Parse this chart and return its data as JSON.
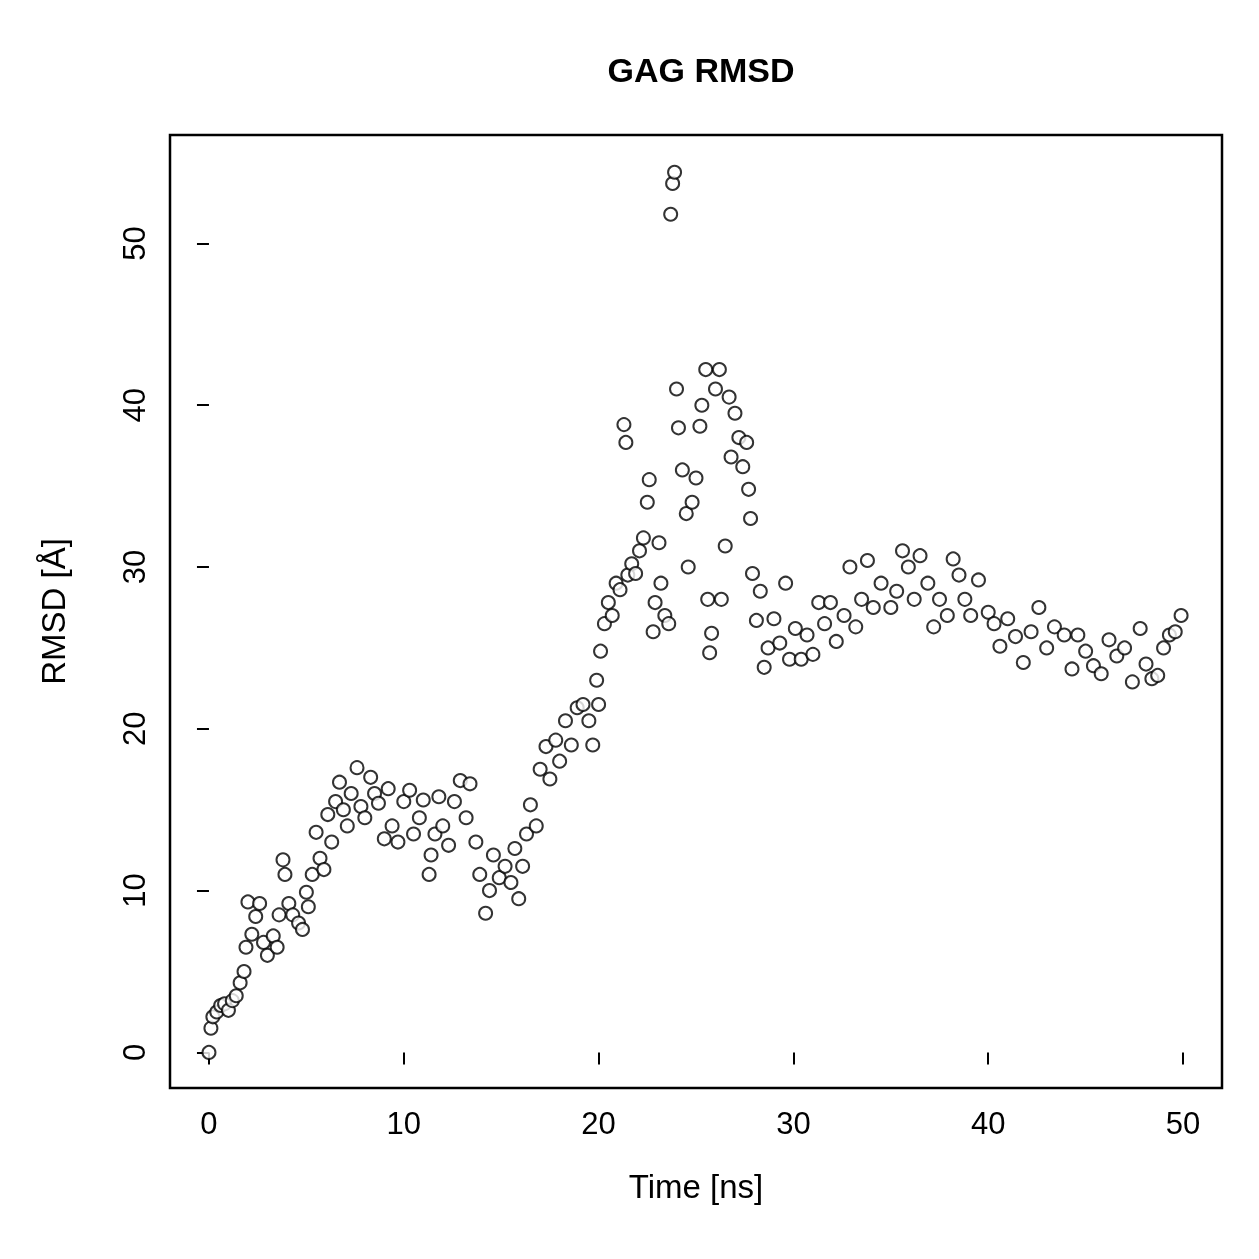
{
  "chart_data": {
    "type": "scatter",
    "title": "GAG RMSD",
    "xlabel": "Time [ns]",
    "ylabel": "RMSD [Å]",
    "xlim": [
      -2,
      52
    ],
    "ylim": [
      -2.2,
      56.7
    ],
    "xticks": [
      0,
      10,
      20,
      30,
      40,
      50
    ],
    "yticks": [
      0,
      10,
      20,
      30,
      40,
      50
    ],
    "marker": "circle",
    "series": [
      {
        "color": "#000000",
        "x": [
          0,
          0.1,
          0.2,
          0.4,
          0.6,
          0.8,
          1.0,
          1.2,
          1.4,
          1.6,
          1.8,
          1.9,
          2.0,
          2.2,
          2.4,
          2.6,
          2.8,
          3.0,
          3.3,
          3.5,
          3.6,
          3.8,
          3.9,
          4.1,
          4.3,
          4.6,
          4.8,
          5.0,
          5.1,
          5.3,
          5.5,
          5.7,
          5.9,
          6.1,
          6.3,
          6.5,
          6.7,
          6.9,
          7.1,
          7.3,
          7.6,
          7.8,
          8.0,
          8.3,
          8.5,
          8.7,
          9.0,
          9.2,
          9.4,
          9.7,
          10.0,
          10.3,
          10.5,
          10.8,
          11.0,
          11.3,
          11.4,
          11.6,
          11.8,
          12.0,
          12.3,
          12.6,
          12.9,
          13.2,
          13.4,
          13.7,
          13.9,
          14.2,
          14.4,
          14.6,
          14.9,
          15.2,
          15.5,
          15.7,
          15.9,
          16.1,
          16.3,
          16.5,
          16.8,
          17.0,
          17.3,
          17.5,
          17.8,
          18.0,
          18.3,
          18.6,
          18.9,
          19.2,
          19.5,
          19.7,
          19.9,
          20.0,
          20.1,
          20.3,
          20.5,
          20.7,
          20.9,
          21.1,
          21.3,
          21.4,
          21.5,
          21.7,
          21.9,
          22.1,
          22.3,
          22.5,
          22.6,
          22.8,
          22.9,
          23.1,
          23.2,
          23.4,
          23.6,
          23.7,
          23.8,
          23.9,
          24.0,
          24.1,
          24.3,
          24.5,
          24.6,
          24.8,
          25.0,
          25.2,
          25.3,
          25.5,
          25.6,
          25.7,
          25.8,
          26.0,
          26.2,
          26.3,
          26.5,
          26.7,
          26.8,
          27.0,
          27.2,
          27.4,
          27.6,
          27.7,
          27.8,
          27.9,
          28.1,
          28.3,
          28.5,
          28.7,
          29.0,
          29.3,
          29.6,
          29.8,
          30.1,
          30.4,
          30.7,
          31.0,
          31.3,
          31.6,
          31.9,
          32.2,
          32.6,
          32.9,
          33.2,
          33.5,
          33.8,
          34.1,
          34.5,
          35.0,
          35.3,
          35.6,
          35.9,
          36.2,
          36.5,
          36.9,
          37.2,
          37.5,
          37.9,
          38.2,
          38.5,
          38.8,
          39.1,
          39.5,
          40.0,
          40.3,
          40.6,
          41.0,
          41.4,
          41.8,
          42.2,
          42.6,
          43.0,
          43.4,
          43.9,
          44.3,
          44.6,
          45.0,
          45.4,
          45.8,
          46.2,
          46.6,
          47.0,
          47.4,
          47.8,
          48.1,
          48.4,
          48.7,
          49.0,
          49.3,
          49.6,
          49.9
        ],
        "values": [
          0,
          1.5,
          2.2,
          2.5,
          2.9,
          3.0,
          2.6,
          3.2,
          3.5,
          4.3,
          5.0,
          6.5,
          9.3,
          7.3,
          8.4,
          9.2,
          6.8,
          6.0,
          7.2,
          6.5,
          8.5,
          11.9,
          11.0,
          9.2,
          8.5,
          8.0,
          7.6,
          9.9,
          9.0,
          11.0,
          13.6,
          12.0,
          11.3,
          14.7,
          13.0,
          15.5,
          16.7,
          15.0,
          14.0,
          16.0,
          17.6,
          15.2,
          14.5,
          17.0,
          16.0,
          15.4,
          13.2,
          16.3,
          14.0,
          13.0,
          15.5,
          16.2,
          13.5,
          14.5,
          15.6,
          11.0,
          12.2,
          13.5,
          15.8,
          14.0,
          12.8,
          15.5,
          16.8,
          14.5,
          16.6,
          13.0,
          11.0,
          8.6,
          10.0,
          12.2,
          10.8,
          11.5,
          10.5,
          12.6,
          9.5,
          11.5,
          13.5,
          15.3,
          14.0,
          17.5,
          18.9,
          16.9,
          19.3,
          18.0,
          20.5,
          19.0,
          21.3,
          21.5,
          20.5,
          19.0,
          23.0,
          21.5,
          24.8,
          26.5,
          27.8,
          27.0,
          29.0,
          28.6,
          38.8,
          37.7,
          29.5,
          30.2,
          29.6,
          31.0,
          31.8,
          34.0,
          35.4,
          26.0,
          27.8,
          31.5,
          29.0,
          27.0,
          26.5,
          51.8,
          53.7,
          54.4,
          41.0,
          38.6,
          36.0,
          33.3,
          30.0,
          34.0,
          35.5,
          38.7,
          40.0,
          42.2,
          28.0,
          24.7,
          25.9,
          41.0,
          42.2,
          28.0,
          31.3,
          40.5,
          36.8,
          39.5,
          38.0,
          36.2,
          37.7,
          34.8,
          33.0,
          29.6,
          26.7,
          28.5,
          23.8,
          25.0,
          26.8,
          25.3,
          29.0,
          24.3,
          26.2,
          24.3,
          25.8,
          24.6,
          27.8,
          26.5,
          27.8,
          25.4,
          27.0,
          30.0,
          26.3,
          28.0,
          30.4,
          27.5,
          29.0,
          27.5,
          28.5,
          31.0,
          30.0,
          28.0,
          30.7,
          29.0,
          26.3,
          28.0,
          27.0,
          30.5,
          29.5,
          28.0,
          27.0,
          29.2,
          27.2,
          26.5,
          25.1,
          26.8,
          25.7,
          24.1,
          26.0,
          27.5,
          25.0,
          26.3,
          25.8,
          23.7,
          25.8,
          24.8,
          23.9,
          23.4,
          25.5,
          24.5,
          25.0,
          22.9,
          26.2,
          24.0,
          23.1,
          23.3,
          25.0,
          25.8,
          26.0,
          27.0
        ]
      }
    ]
  }
}
